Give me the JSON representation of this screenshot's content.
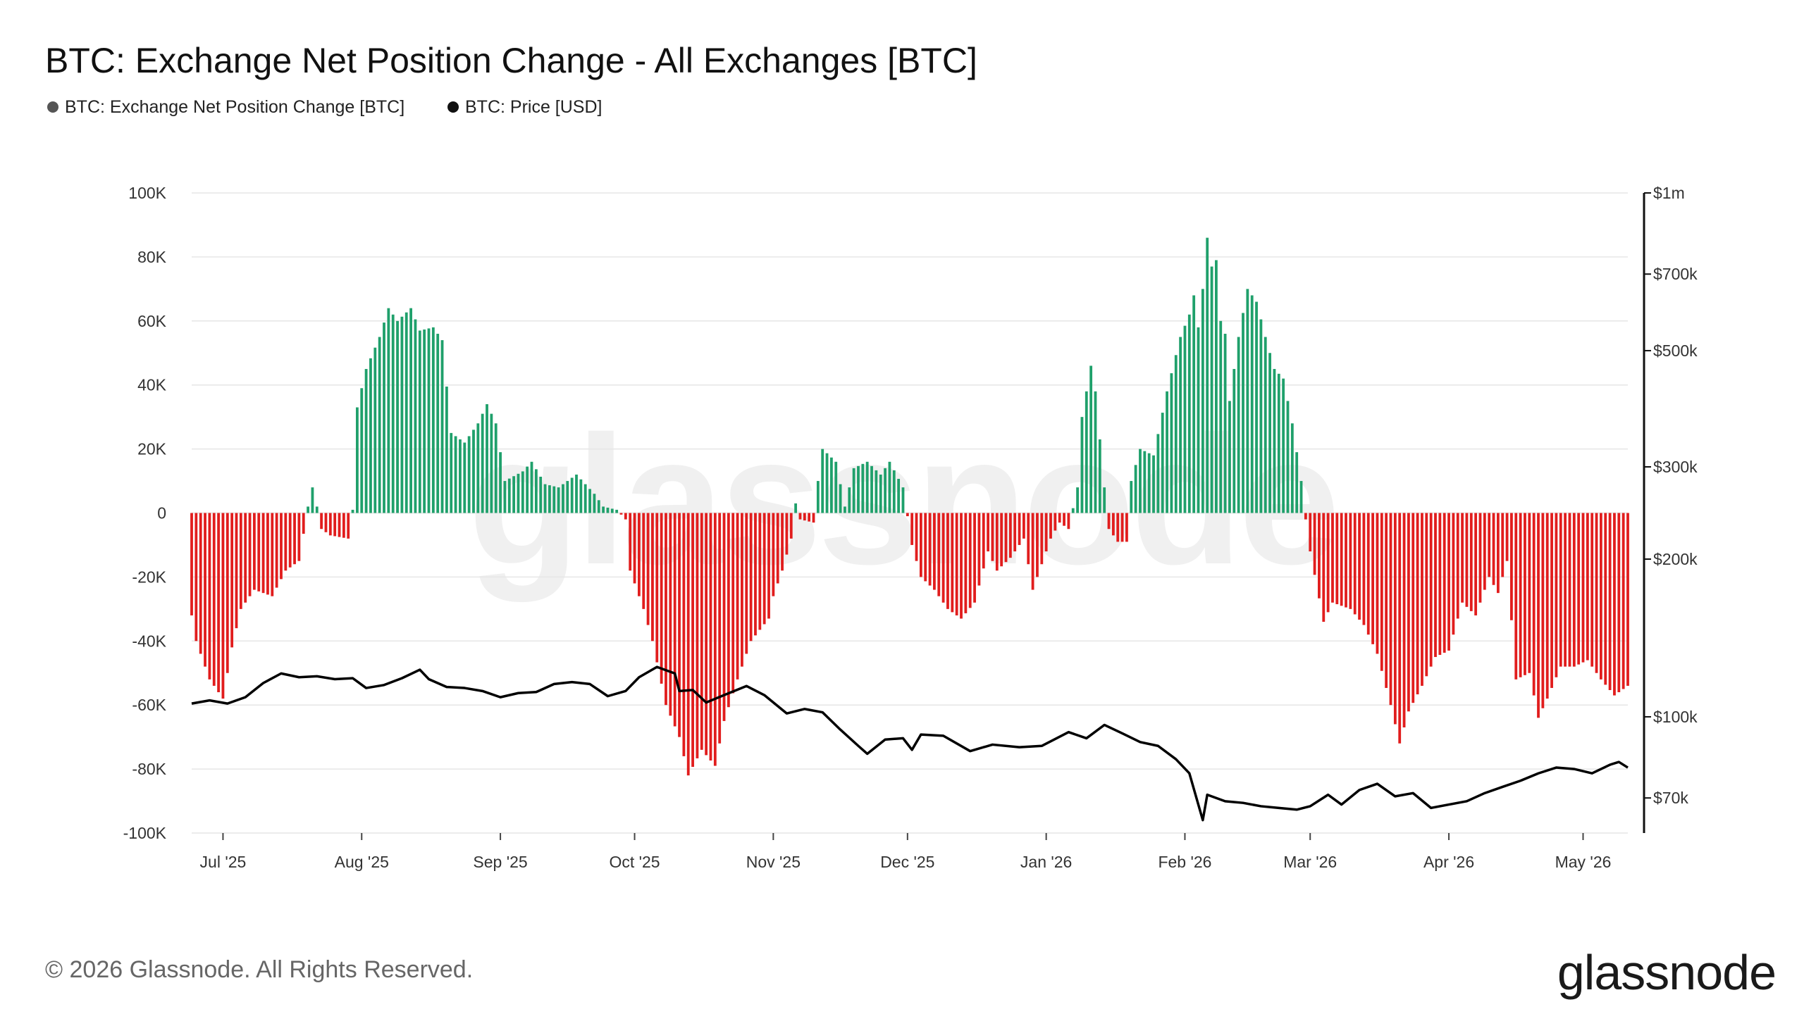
{
  "header": {
    "title": "BTC: Exchange Net Position Change - All Exchanges [BTC]"
  },
  "legend": [
    {
      "label": "BTC: Exchange Net Position Change [BTC]",
      "color": "#555555"
    },
    {
      "label": "BTC: Price [USD]",
      "color": "#111111"
    }
  ],
  "footer": {
    "copyright": "© 2026 Glassnode. All Rights Reserved.",
    "brand": "glassnode"
  },
  "watermark": "glassnode",
  "colors": {
    "positive": "#1fa06b",
    "negative": "#e11d1d",
    "price_line": "#000000",
    "grid": "#e6e6e6"
  },
  "chart_data": {
    "type": "bar",
    "grid": true,
    "legend_position": "top-left",
    "x_range": [
      "2025-06-24",
      "2026-05-11"
    ],
    "x_ticks": [
      {
        "label": "Jul '25",
        "date": "2025-07-01"
      },
      {
        "label": "Aug '25",
        "date": "2025-08-01"
      },
      {
        "label": "Sep '25",
        "date": "2025-09-01"
      },
      {
        "label": "Oct '25",
        "date": "2025-10-01"
      },
      {
        "label": "Nov '25",
        "date": "2025-11-01"
      },
      {
        "label": "Dec '25",
        "date": "2025-12-01"
      },
      {
        "label": "Jan '26",
        "date": "2026-01-01"
      },
      {
        "label": "Feb '26",
        "date": "2026-02-01"
      },
      {
        "label": "Mar '26",
        "date": "2026-03-01"
      },
      {
        "label": "Apr '26",
        "date": "2026-04-01"
      },
      {
        "label": "May '26",
        "date": "2026-05-01"
      }
    ],
    "y_left": {
      "range": [
        -100000,
        100000
      ],
      "ticks": [
        100000,
        80000,
        60000,
        40000,
        20000,
        0,
        -20000,
        -40000,
        -60000,
        -80000,
        -100000
      ],
      "tick_labels": [
        "100K",
        "80K",
        "60K",
        "40K",
        "20K",
        "0",
        "-20K",
        "-40K",
        "-60K",
        "-80K",
        "-100K"
      ]
    },
    "y_right": {
      "scale": "log",
      "range": [
        60000,
        1000000
      ],
      "ticks": [
        1000000,
        700000,
        500000,
        300000,
        200000,
        100000,
        70000
      ],
      "tick_labels": [
        "$1m",
        "$700k",
        "$500k",
        "$300k",
        "$200k",
        "$100k",
        "$70k"
      ]
    },
    "series": [
      {
        "name": "BTC: Exchange Net Position Change [BTC]",
        "axis": "left",
        "type": "bar",
        "keypoints": [
          [
            "2025-06-24",
            -32000
          ],
          [
            "2025-06-25",
            -40000
          ],
          [
            "2025-06-28",
            -52000
          ],
          [
            "2025-07-01",
            -58000
          ],
          [
            "2025-07-03",
            -42000
          ],
          [
            "2025-07-05",
            -30000
          ],
          [
            "2025-07-08",
            -24000
          ],
          [
            "2025-07-12",
            -26000
          ],
          [
            "2025-07-15",
            -18000
          ],
          [
            "2025-07-18",
            -15000
          ],
          [
            "2025-07-20",
            2000
          ],
          [
            "2025-07-21",
            8000
          ],
          [
            "2025-07-22",
            2000
          ],
          [
            "2025-07-23",
            -5000
          ],
          [
            "2025-07-25",
            -7000
          ],
          [
            "2025-07-29",
            -8000
          ],
          [
            "2025-07-30",
            1000
          ],
          [
            "2025-07-31",
            33000
          ],
          [
            "2025-08-02",
            45000
          ],
          [
            "2025-08-05",
            55000
          ],
          [
            "2025-08-07",
            64000
          ],
          [
            "2025-08-09",
            60000
          ],
          [
            "2025-08-12",
            64000
          ],
          [
            "2025-08-14",
            57000
          ],
          [
            "2025-08-17",
            58000
          ],
          [
            "2025-08-19",
            54000
          ],
          [
            "2025-08-21",
            25000
          ],
          [
            "2025-08-24",
            22000
          ],
          [
            "2025-08-27",
            28000
          ],
          [
            "2025-08-29",
            34000
          ],
          [
            "2025-08-31",
            28000
          ],
          [
            "2025-09-02",
            10000
          ],
          [
            "2025-09-06",
            13000
          ],
          [
            "2025-09-08",
            16000
          ],
          [
            "2025-09-11",
            9000
          ],
          [
            "2025-09-14",
            8000
          ],
          [
            "2025-09-18",
            12000
          ],
          [
            "2025-09-22",
            6000
          ],
          [
            "2025-09-24",
            2000
          ],
          [
            "2025-09-27",
            1000
          ],
          [
            "2025-09-29",
            -2000
          ],
          [
            "2025-09-30",
            -18000
          ],
          [
            "2025-10-03",
            -30000
          ],
          [
            "2025-10-05",
            -40000
          ],
          [
            "2025-10-08",
            -60000
          ],
          [
            "2025-10-11",
            -70000
          ],
          [
            "2025-10-13",
            -82000
          ],
          [
            "2025-10-16",
            -74000
          ],
          [
            "2025-10-19",
            -79000
          ],
          [
            "2025-10-21",
            -65000
          ],
          [
            "2025-10-24",
            -52000
          ],
          [
            "2025-10-27",
            -40000
          ],
          [
            "2025-10-31",
            -33000
          ],
          [
            "2025-11-01",
            -26000
          ],
          [
            "2025-11-03",
            -18000
          ],
          [
            "2025-11-05",
            -8000
          ],
          [
            "2025-11-06",
            3000
          ],
          [
            "2025-11-07",
            -2000
          ],
          [
            "2025-11-10",
            -3000
          ],
          [
            "2025-11-11",
            10000
          ],
          [
            "2025-11-12",
            20000
          ],
          [
            "2025-11-15",
            16000
          ],
          [
            "2025-11-17",
            2000
          ],
          [
            "2025-11-19",
            14000
          ],
          [
            "2025-11-22",
            16000
          ],
          [
            "2025-11-25",
            12000
          ],
          [
            "2025-11-27",
            16000
          ],
          [
            "2025-11-30",
            8000
          ],
          [
            "2025-12-02",
            -10000
          ],
          [
            "2025-12-04",
            -20000
          ],
          [
            "2025-12-07",
            -24000
          ],
          [
            "2025-12-10",
            -30000
          ],
          [
            "2025-12-13",
            -33000
          ],
          [
            "2025-12-16",
            -28000
          ],
          [
            "2025-12-19",
            -12000
          ],
          [
            "2025-12-21",
            -18000
          ],
          [
            "2025-12-24",
            -14000
          ],
          [
            "2025-12-27",
            -8000
          ],
          [
            "2025-12-29",
            -24000
          ],
          [
            "2025-12-31",
            -16000
          ],
          [
            "2026-01-02",
            -8000
          ],
          [
            "2026-01-04",
            -3000
          ],
          [
            "2026-01-06",
            -5000
          ],
          [
            "2026-01-08",
            8000
          ],
          [
            "2026-01-09",
            30000
          ],
          [
            "2026-01-11",
            46000
          ],
          [
            "2026-01-12",
            38000
          ],
          [
            "2026-01-14",
            8000
          ],
          [
            "2026-01-15",
            -5000
          ],
          [
            "2026-01-17",
            -9000
          ],
          [
            "2026-01-19",
            -9000
          ],
          [
            "2026-01-20",
            10000
          ],
          [
            "2026-01-22",
            20000
          ],
          [
            "2026-01-25",
            18000
          ],
          [
            "2026-01-28",
            38000
          ],
          [
            "2026-01-31",
            55000
          ],
          [
            "2026-02-02",
            62000
          ],
          [
            "2026-02-03",
            68000
          ],
          [
            "2026-02-04",
            58000
          ],
          [
            "2026-02-05",
            70000
          ],
          [
            "2026-02-06",
            86000
          ],
          [
            "2026-02-07",
            77000
          ],
          [
            "2026-02-08",
            79000
          ],
          [
            "2026-02-09",
            60000
          ],
          [
            "2026-02-10",
            56000
          ],
          [
            "2026-02-11",
            35000
          ],
          [
            "2026-02-13",
            55000
          ],
          [
            "2026-02-15",
            70000
          ],
          [
            "2026-02-17",
            66000
          ],
          [
            "2026-02-19",
            55000
          ],
          [
            "2026-02-21",
            45000
          ],
          [
            "2026-02-23",
            42000
          ],
          [
            "2026-02-25",
            28000
          ],
          [
            "2026-02-27",
            10000
          ],
          [
            "2026-02-28",
            -2000
          ],
          [
            "2026-03-01",
            -12000
          ],
          [
            "2026-03-04",
            -34000
          ],
          [
            "2026-03-06",
            -28000
          ],
          [
            "2026-03-10",
            -30000
          ],
          [
            "2026-03-13",
            -35000
          ],
          [
            "2026-03-16",
            -44000
          ],
          [
            "2026-03-19",
            -60000
          ],
          [
            "2026-03-21",
            -72000
          ],
          [
            "2026-03-23",
            -62000
          ],
          [
            "2026-03-26",
            -54000
          ],
          [
            "2026-03-29",
            -45000
          ],
          [
            "2026-04-01",
            -43000
          ],
          [
            "2026-04-04",
            -28000
          ],
          [
            "2026-04-07",
            -32000
          ],
          [
            "2026-04-10",
            -20000
          ],
          [
            "2026-04-12",
            -25000
          ],
          [
            "2026-04-14",
            -15000
          ],
          [
            "2026-04-16",
            -52000
          ],
          [
            "2026-04-19",
            -50000
          ],
          [
            "2026-04-21",
            -64000
          ],
          [
            "2026-04-23",
            -58000
          ],
          [
            "2026-04-26",
            -48000
          ],
          [
            "2026-04-29",
            -48000
          ],
          [
            "2026-05-02",
            -46000
          ],
          [
            "2026-05-05",
            -52000
          ],
          [
            "2026-05-08",
            -57000
          ],
          [
            "2026-05-11",
            -54000
          ]
        ]
      },
      {
        "name": "BTC: Price [USD]",
        "axis": "right",
        "type": "line",
        "keypoints": [
          [
            "2025-06-24",
            106000
          ],
          [
            "2025-06-28",
            107500
          ],
          [
            "2025-07-02",
            106000
          ],
          [
            "2025-07-06",
            109000
          ],
          [
            "2025-07-10",
            116000
          ],
          [
            "2025-07-14",
            121000
          ],
          [
            "2025-07-18",
            119000
          ],
          [
            "2025-07-22",
            119500
          ],
          [
            "2025-07-26",
            118000
          ],
          [
            "2025-07-30",
            118500
          ],
          [
            "2025-08-02",
            113500
          ],
          [
            "2025-08-06",
            115000
          ],
          [
            "2025-08-10",
            118500
          ],
          [
            "2025-08-14",
            123000
          ],
          [
            "2025-08-16",
            118000
          ],
          [
            "2025-08-20",
            114000
          ],
          [
            "2025-08-24",
            113500
          ],
          [
            "2025-08-28",
            112000
          ],
          [
            "2025-09-01",
            109000
          ],
          [
            "2025-09-05",
            111000
          ],
          [
            "2025-09-09",
            111500
          ],
          [
            "2025-09-13",
            115500
          ],
          [
            "2025-09-17",
            116500
          ],
          [
            "2025-09-21",
            115500
          ],
          [
            "2025-09-25",
            109500
          ],
          [
            "2025-09-29",
            112000
          ],
          [
            "2025-10-02",
            119000
          ],
          [
            "2025-10-06",
            124500
          ],
          [
            "2025-10-10",
            121000
          ],
          [
            "2025-10-11",
            112000
          ],
          [
            "2025-10-14",
            112500
          ],
          [
            "2025-10-17",
            106500
          ],
          [
            "2025-10-21",
            110000
          ],
          [
            "2025-10-26",
            114500
          ],
          [
            "2025-10-30",
            110000
          ],
          [
            "2025-11-04",
            101500
          ],
          [
            "2025-11-08",
            103500
          ],
          [
            "2025-11-12",
            102000
          ],
          [
            "2025-11-16",
            94500
          ],
          [
            "2025-11-20",
            88000
          ],
          [
            "2025-11-22",
            85000
          ],
          [
            "2025-11-26",
            90500
          ],
          [
            "2025-11-30",
            91000
          ],
          [
            "2025-12-02",
            86500
          ],
          [
            "2025-12-04",
            92500
          ],
          [
            "2025-12-09",
            92000
          ],
          [
            "2025-12-15",
            86000
          ],
          [
            "2025-12-20",
            88500
          ],
          [
            "2025-12-26",
            87500
          ],
          [
            "2025-12-31",
            88000
          ],
          [
            "2026-01-06",
            93500
          ],
          [
            "2026-01-10",
            91000
          ],
          [
            "2026-01-14",
            96500
          ],
          [
            "2026-01-18",
            93000
          ],
          [
            "2026-01-22",
            89500
          ],
          [
            "2026-01-26",
            88000
          ],
          [
            "2026-01-30",
            83000
          ],
          [
            "2026-02-02",
            78000
          ],
          [
            "2026-02-05",
            63500
          ],
          [
            "2026-02-06",
            71000
          ],
          [
            "2026-02-10",
            69000
          ],
          [
            "2026-02-14",
            68500
          ],
          [
            "2026-02-18",
            67500
          ],
          [
            "2026-02-22",
            67000
          ],
          [
            "2026-02-26",
            66500
          ],
          [
            "2026-03-01",
            67500
          ],
          [
            "2026-03-05",
            71000
          ],
          [
            "2026-03-08",
            68000
          ],
          [
            "2026-03-12",
            72500
          ],
          [
            "2026-03-16",
            74500
          ],
          [
            "2026-03-20",
            70500
          ],
          [
            "2026-03-24",
            71500
          ],
          [
            "2026-03-28",
            67000
          ],
          [
            "2026-04-01",
            68000
          ],
          [
            "2026-04-05",
            69000
          ],
          [
            "2026-04-09",
            71500
          ],
          [
            "2026-04-13",
            73500
          ],
          [
            "2026-04-17",
            75500
          ],
          [
            "2026-04-21",
            78000
          ],
          [
            "2026-04-25",
            80000
          ],
          [
            "2026-04-29",
            79500
          ],
          [
            "2026-05-03",
            78000
          ],
          [
            "2026-05-07",
            81000
          ],
          [
            "2026-05-09",
            82000
          ],
          [
            "2026-05-11",
            80000
          ]
        ]
      }
    ]
  }
}
